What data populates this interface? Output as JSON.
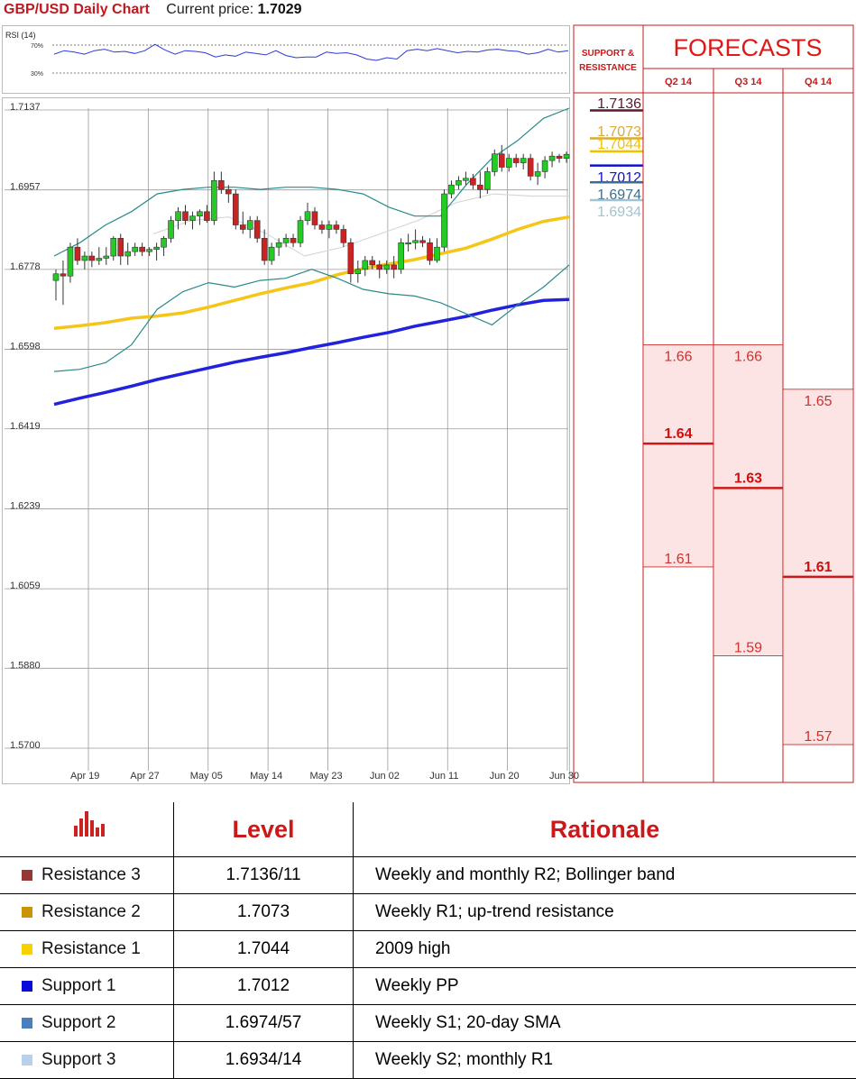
{
  "header": {
    "title": "GBP/USD Daily Chart",
    "price_label": "Current price:",
    "price_value": "1.7029"
  },
  "chart_data": {
    "type": "candlestick",
    "title": "GBP/USD Daily Chart",
    "indicator_label": "RSI (14)",
    "rsi_levels": [
      "70%",
      "30%"
    ],
    "y_ticks": [
      "1.7137",
      "1.6957",
      "1.6778",
      "1.6598",
      "1.6419",
      "1.6239",
      "1.6059",
      "1.5880",
      "1.5700"
    ],
    "ylim": [
      1.57,
      1.7137
    ],
    "x_ticks": [
      "Apr 19",
      "Apr 27",
      "May 05",
      "May 14",
      "May 23",
      "Jun 02",
      "Jun 11",
      "Jun 20",
      "Jun 30"
    ],
    "candles": [
      [
        1.6745,
        1.677,
        1.67,
        1.676
      ],
      [
        1.676,
        1.679,
        1.669,
        1.6755
      ],
      [
        1.6755,
        1.683,
        1.674,
        1.682
      ],
      [
        1.682,
        1.684,
        1.678,
        1.679
      ],
      [
        1.679,
        1.681,
        1.677,
        1.68
      ],
      [
        1.68,
        1.681,
        1.6775,
        1.679
      ],
      [
        1.679,
        1.682,
        1.678,
        1.6795
      ],
      [
        1.6795,
        1.682,
        1.678,
        1.68
      ],
      [
        1.68,
        1.6845,
        1.679,
        1.684
      ],
      [
        1.684,
        1.685,
        1.678,
        1.68
      ],
      [
        1.68,
        1.683,
        1.678,
        1.681
      ],
      [
        1.681,
        1.683,
        1.68,
        1.682
      ],
      [
        1.682,
        1.683,
        1.68,
        1.681
      ],
      [
        1.681,
        1.682,
        1.68,
        1.6815
      ],
      [
        1.6815,
        1.683,
        1.679,
        1.682
      ],
      [
        1.682,
        1.6845,
        1.68,
        1.684
      ],
      [
        1.684,
        1.689,
        1.683,
        1.688
      ],
      [
        1.688,
        1.691,
        1.686,
        1.69
      ],
      [
        1.69,
        1.6915,
        1.687,
        1.688
      ],
      [
        1.688,
        1.69,
        1.686,
        1.689
      ],
      [
        1.689,
        1.6905,
        1.687,
        1.69
      ],
      [
        1.69,
        1.6915,
        1.6875,
        1.688
      ],
      [
        1.688,
        1.699,
        1.687,
        1.697
      ],
      [
        1.697,
        1.699,
        1.694,
        1.695
      ],
      [
        1.695,
        1.696,
        1.692,
        1.694
      ],
      [
        1.694,
        1.695,
        1.686,
        1.687
      ],
      [
        1.687,
        1.69,
        1.685,
        1.686
      ],
      [
        1.686,
        1.689,
        1.684,
        1.688
      ],
      [
        1.688,
        1.689,
        1.683,
        1.684
      ],
      [
        1.684,
        1.686,
        1.678,
        1.679
      ],
      [
        1.679,
        1.683,
        1.678,
        1.682
      ],
      [
        1.682,
        1.684,
        1.68,
        1.683
      ],
      [
        1.683,
        1.685,
        1.682,
        1.684
      ],
      [
        1.684,
        1.685,
        1.682,
        1.683
      ],
      [
        1.683,
        1.689,
        1.682,
        1.688
      ],
      [
        1.688,
        1.692,
        1.687,
        1.69
      ],
      [
        1.69,
        1.691,
        1.686,
        1.687
      ],
      [
        1.687,
        1.688,
        1.685,
        1.686
      ],
      [
        1.686,
        1.688,
        1.684,
        1.687
      ],
      [
        1.687,
        1.688,
        1.685,
        1.686
      ],
      [
        1.686,
        1.687,
        1.682,
        1.683
      ],
      [
        1.683,
        1.684,
        1.674,
        1.676
      ],
      [
        1.676,
        1.679,
        1.674,
        1.677
      ],
      [
        1.677,
        1.68,
        1.6755,
        1.679
      ],
      [
        1.679,
        1.68,
        1.677,
        1.678
      ],
      [
        1.678,
        1.679,
        1.675,
        1.677
      ],
      [
        1.677,
        1.679,
        1.676,
        1.678
      ],
      [
        1.678,
        1.68,
        1.675,
        1.677
      ],
      [
        1.677,
        1.684,
        1.676,
        1.683
      ],
      [
        1.683,
        1.685,
        1.681,
        1.683
      ],
      [
        1.683,
        1.686,
        1.6815,
        1.6835
      ],
      [
        1.6835,
        1.6845,
        1.682,
        1.683
      ],
      [
        1.683,
        1.684,
        1.678,
        1.679
      ],
      [
        1.679,
        1.684,
        1.6785,
        1.682
      ],
      [
        1.682,
        1.695,
        1.681,
        1.694
      ],
      [
        1.694,
        1.697,
        1.693,
        1.696
      ],
      [
        1.696,
        1.698,
        1.695,
        1.697
      ],
      [
        1.697,
        1.699,
        1.696,
        1.6975
      ],
      [
        1.6975,
        1.6985,
        1.695,
        1.696
      ],
      [
        1.696,
        1.699,
        1.693,
        1.695
      ],
      [
        1.695,
        1.7,
        1.694,
        1.699
      ],
      [
        1.699,
        1.704,
        1.698,
        1.703
      ],
      [
        1.703,
        1.705,
        1.699,
        1.7
      ],
      [
        1.7,
        1.703,
        1.699,
        1.702
      ],
      [
        1.702,
        1.703,
        1.7,
        1.701
      ],
      [
        1.701,
        1.703,
        1.6995,
        1.702
      ],
      [
        1.702,
        1.703,
        1.697,
        1.698
      ],
      [
        1.698,
        1.701,
        1.696,
        1.699
      ],
      [
        1.699,
        1.7025,
        1.6975,
        1.7015
      ],
      [
        1.7015,
        1.7035,
        1.7,
        1.7025
      ],
      [
        1.7025,
        1.703,
        1.701,
        1.702
      ],
      [
        1.702,
        1.7035,
        1.701,
        1.7029
      ]
    ],
    "bollinger_upper": [
      1.68,
      1.683,
      1.687,
      1.69,
      1.694,
      1.695,
      1.6955,
      1.6955,
      1.695,
      1.6955,
      1.6955,
      1.695,
      1.694,
      1.691,
      1.689,
      1.689,
      1.696,
      1.702,
      1.706,
      1.711,
      1.7133
    ],
    "bollinger_lower": [
      1.654,
      1.6545,
      1.656,
      1.66,
      1.668,
      1.672,
      1.674,
      1.673,
      1.6745,
      1.675,
      1.677,
      1.675,
      1.6725,
      1.6715,
      1.671,
      1.6695,
      1.667,
      1.6645,
      1.669,
      1.673,
      1.678
    ],
    "sma_50": [
      1.6637,
      1.6643,
      1.665,
      1.666,
      1.6665,
      1.6672,
      1.6685,
      1.67,
      1.6715,
      1.6728,
      1.674,
      1.6758,
      1.6772,
      1.6782,
      1.6792,
      1.6805,
      1.6818,
      1.6838,
      1.686,
      1.6878,
      1.6888
    ],
    "sma_200": [
      1.6466,
      1.648,
      1.6493,
      1.6507,
      1.6522,
      1.6535,
      1.6548,
      1.6561,
      1.6572,
      1.6582,
      1.6594,
      1.6605,
      1.6617,
      1.6628,
      1.6642,
      1.6653,
      1.6664,
      1.6678,
      1.669,
      1.67,
      1.6702
    ],
    "sma_20": [
      1.685,
      1.688,
      1.6888,
      1.685,
      1.68,
      1.682,
      1.685,
      1.688,
      1.692,
      1.694,
      1.6935,
      1.6935
    ],
    "rsi": [
      57,
      62,
      60,
      57,
      62,
      64,
      60,
      61,
      58,
      62,
      71,
      63,
      57,
      62,
      61,
      59,
      53,
      56,
      54,
      60,
      58,
      56,
      62,
      55,
      52,
      53,
      53,
      60,
      58,
      59,
      56,
      50,
      48,
      52,
      50,
      62,
      64,
      62,
      65,
      62,
      59,
      61,
      60,
      63,
      64,
      62,
      61,
      57,
      59,
      64,
      60,
      62
    ],
    "support_resistance": [
      {
        "label": "1.7136",
        "color": "#5a1a2e"
      },
      {
        "label": "1.7073",
        "color": "#d9aa3c"
      },
      {
        "label": "1.7044",
        "color": "#f2c200"
      },
      {
        "label": "1.7012",
        "color": "#1010cc"
      },
      {
        "label": "1.6974",
        "color": "#3d6e8c"
      },
      {
        "label": "1.6934",
        "color": "#a4c3d0"
      }
    ],
    "forecasts": {
      "title": "FORECASTS",
      "sr_header": "SUPPORT & RESISTANCE",
      "quarters": [
        {
          "label": "Q2 14",
          "high": "1.66",
          "mid": "1.64",
          "low": "1.61",
          "high_v": 1.66,
          "mid_v": 1.64,
          "low_v": 1.61
        },
        {
          "label": "Q3 14",
          "high": "1.66",
          "mid": "1.63",
          "low": "1.59",
          "high_v": 1.66,
          "mid_v": 1.63,
          "low_v": 1.59
        },
        {
          "label": "Q4 14",
          "high": "1.65",
          "mid": "1.61",
          "low": "1.57",
          "high_v": 1.65,
          "mid_v": 1.61,
          "low_v": 1.57
        }
      ]
    }
  },
  "table": {
    "header": {
      "level": "Level",
      "rationale": "Rationale"
    },
    "rows": [
      {
        "name": "Resistance 3",
        "value": "1.7136/11",
        "rationale": "Weekly and monthly R2; Bollinger band",
        "color": "#953735"
      },
      {
        "name": "Resistance 2",
        "value": "1.7073",
        "rationale": "Weekly R1; up-trend resistance",
        "color": "#c9940a"
      },
      {
        "name": "Resistance 1",
        "value": "1.7044",
        "rationale": "2009 high",
        "color": "#f5d200"
      },
      {
        "name": "Support 1",
        "value": "1.7012",
        "rationale": "Weekly PP",
        "color": "#0b0bd6"
      },
      {
        "name": "Support 2",
        "value": "1.6974/57",
        "rationale": "Weekly S1; 20-day SMA",
        "color": "#4a7fbd"
      },
      {
        "name": "Support 3",
        "value": "1.6934/14",
        "rationale": "Weekly S2; monthly R1",
        "color": "#b9d0ea"
      }
    ]
  }
}
